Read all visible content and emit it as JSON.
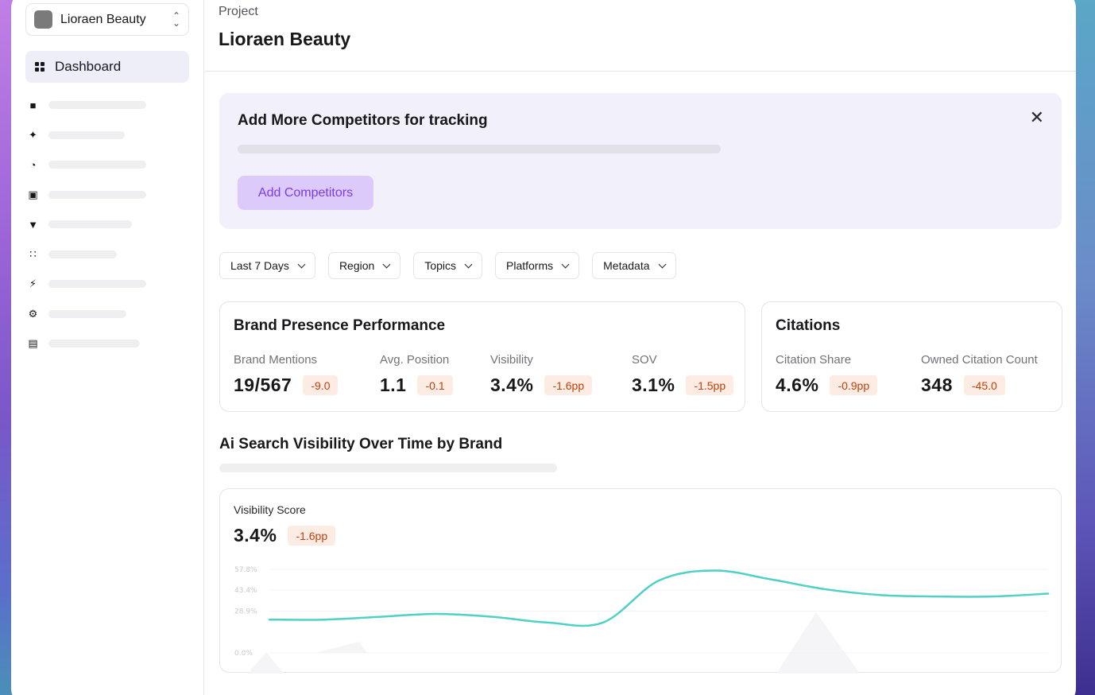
{
  "sidebar": {
    "project_name": "Lioraen Beauty",
    "active_item": {
      "label": "Dashboard",
      "icon": "grid-icon"
    },
    "items": [
      {
        "icon": "message-icon",
        "skeleton_fraction": 0.6
      },
      {
        "icon": "magic-wand-icon",
        "skeleton_fraction": 0.47
      },
      {
        "icon": "pie-chart-icon",
        "skeleton_fraction": 0.6
      },
      {
        "icon": "image-icon",
        "skeleton_fraction": 0.6
      },
      {
        "icon": "basket-icon",
        "skeleton_fraction": 0.51
      },
      {
        "icon": "apps-icon",
        "skeleton_fraction": 0.42
      },
      {
        "icon": "lightning-icon",
        "skeleton_fraction": 0.6
      },
      {
        "icon": "settings-icon",
        "skeleton_fraction": 0.48
      },
      {
        "icon": "layout-icon",
        "skeleton_fraction": 0.56
      }
    ]
  },
  "header": {
    "breadcrumb": "Project",
    "title": "Lioraen Beauty"
  },
  "banner": {
    "title": "Add More Competitors for tracking",
    "button_label": "Add Competitors",
    "close_icon": "close-icon"
  },
  "filters": [
    "Last 7 Days",
    "Region",
    "Topics",
    "Platforms",
    "Metadata"
  ],
  "brand_presence": {
    "title": "Brand Presence Performance",
    "metrics": [
      {
        "label": "Brand Mentions",
        "value": "19/567",
        "delta": "-9.0"
      },
      {
        "label": "Avg. Position",
        "value": "1.1",
        "delta": "-0.1"
      },
      {
        "label": "Visibility",
        "value": "3.4%",
        "delta": "-1.6pp"
      },
      {
        "label": "SOV",
        "value": "3.1%",
        "delta": "-1.5pp"
      }
    ]
  },
  "citations": {
    "title": "Citations",
    "metrics": [
      {
        "label": "Citation Share",
        "value": "4.6%",
        "delta": "-0.9pp"
      },
      {
        "label": "Owned Citation Count",
        "value": "348",
        "delta": "-45.0"
      }
    ]
  },
  "visibility_section": {
    "title": "Ai Search Visibility Over Time by Brand"
  },
  "chart_card": {
    "label": "Visibility Score",
    "value": "3.4%",
    "delta": "-1.6pp"
  },
  "chart_data": {
    "type": "line",
    "title": "",
    "xlabel": "",
    "ylabel": "",
    "y_ticks": [
      "0.0%",
      "28.9%",
      "43.4%",
      "57.8%"
    ],
    "y_tick_values": [
      0,
      28.9,
      43.4,
      57.8
    ],
    "ylim": [
      0,
      57.8
    ],
    "grid": true,
    "series": [
      {
        "color": "#4fd1c5",
        "values": [
          23,
          23,
          25,
          27,
          25,
          21,
          21,
          50,
          57,
          51,
          44,
          40,
          39,
          39,
          41
        ]
      }
    ]
  }
}
